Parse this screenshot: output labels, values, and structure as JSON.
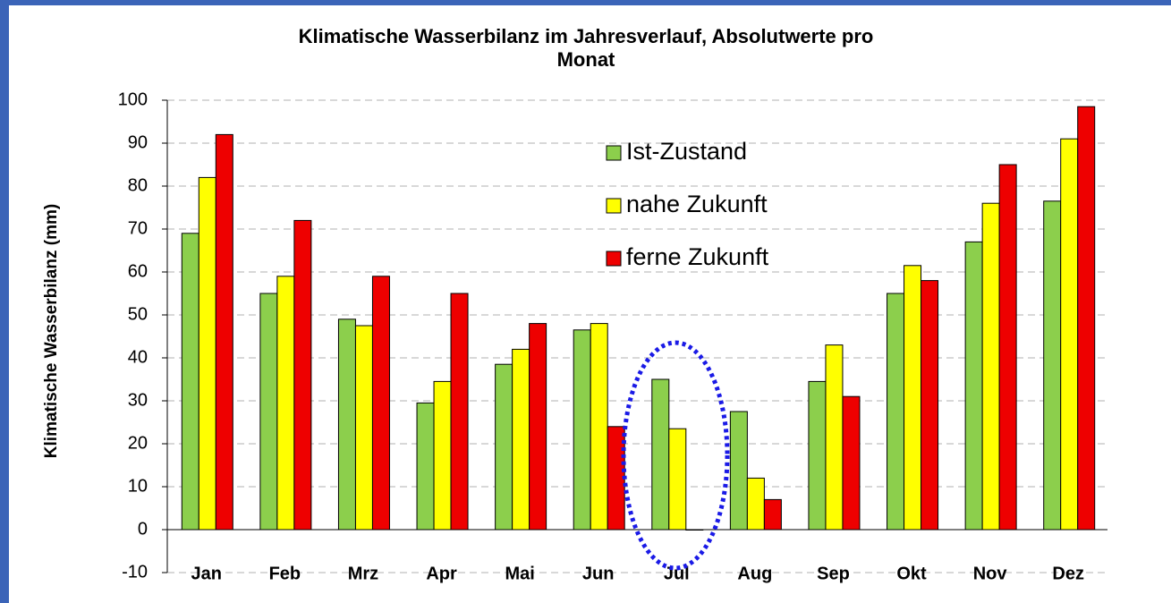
{
  "chart_data": {
    "type": "bar",
    "title": "Klimatische Wasserbilanz im Jahresverlauf, Absolutwerte pro Monat",
    "y_label": "Klimatische Wasserbilanz (mm)",
    "categories": [
      "Jan",
      "Feb",
      "Mrz",
      "Apr",
      "Mai",
      "Jun",
      "Jul",
      "Aug",
      "Sep",
      "Okt",
      "Nov",
      "Dez"
    ],
    "series": [
      {
        "name": "Ist-Zustand",
        "color": "#8ccf4c",
        "values": [
          69,
          55,
          49,
          29.5,
          38.5,
          46.5,
          35,
          27.5,
          34.5,
          55,
          67,
          76.5
        ]
      },
      {
        "name": "nahe Zukunft",
        "color": "#ffff00",
        "values": [
          82,
          59,
          47.5,
          34.5,
          42,
          48,
          23.5,
          12,
          43,
          61.5,
          76,
          91
        ]
      },
      {
        "name": "ferne Zukunft",
        "color": "#ee0000",
        "values": [
          92,
          72,
          59,
          55,
          48,
          24,
          0,
          7,
          31,
          58,
          85,
          98.5
        ]
      }
    ],
    "ylim": [
      -10,
      100
    ],
    "yticks": [
      -10,
      0,
      10,
      20,
      30,
      40,
      50,
      60,
      70,
      80,
      90,
      100
    ],
    "grid": true
  }
}
